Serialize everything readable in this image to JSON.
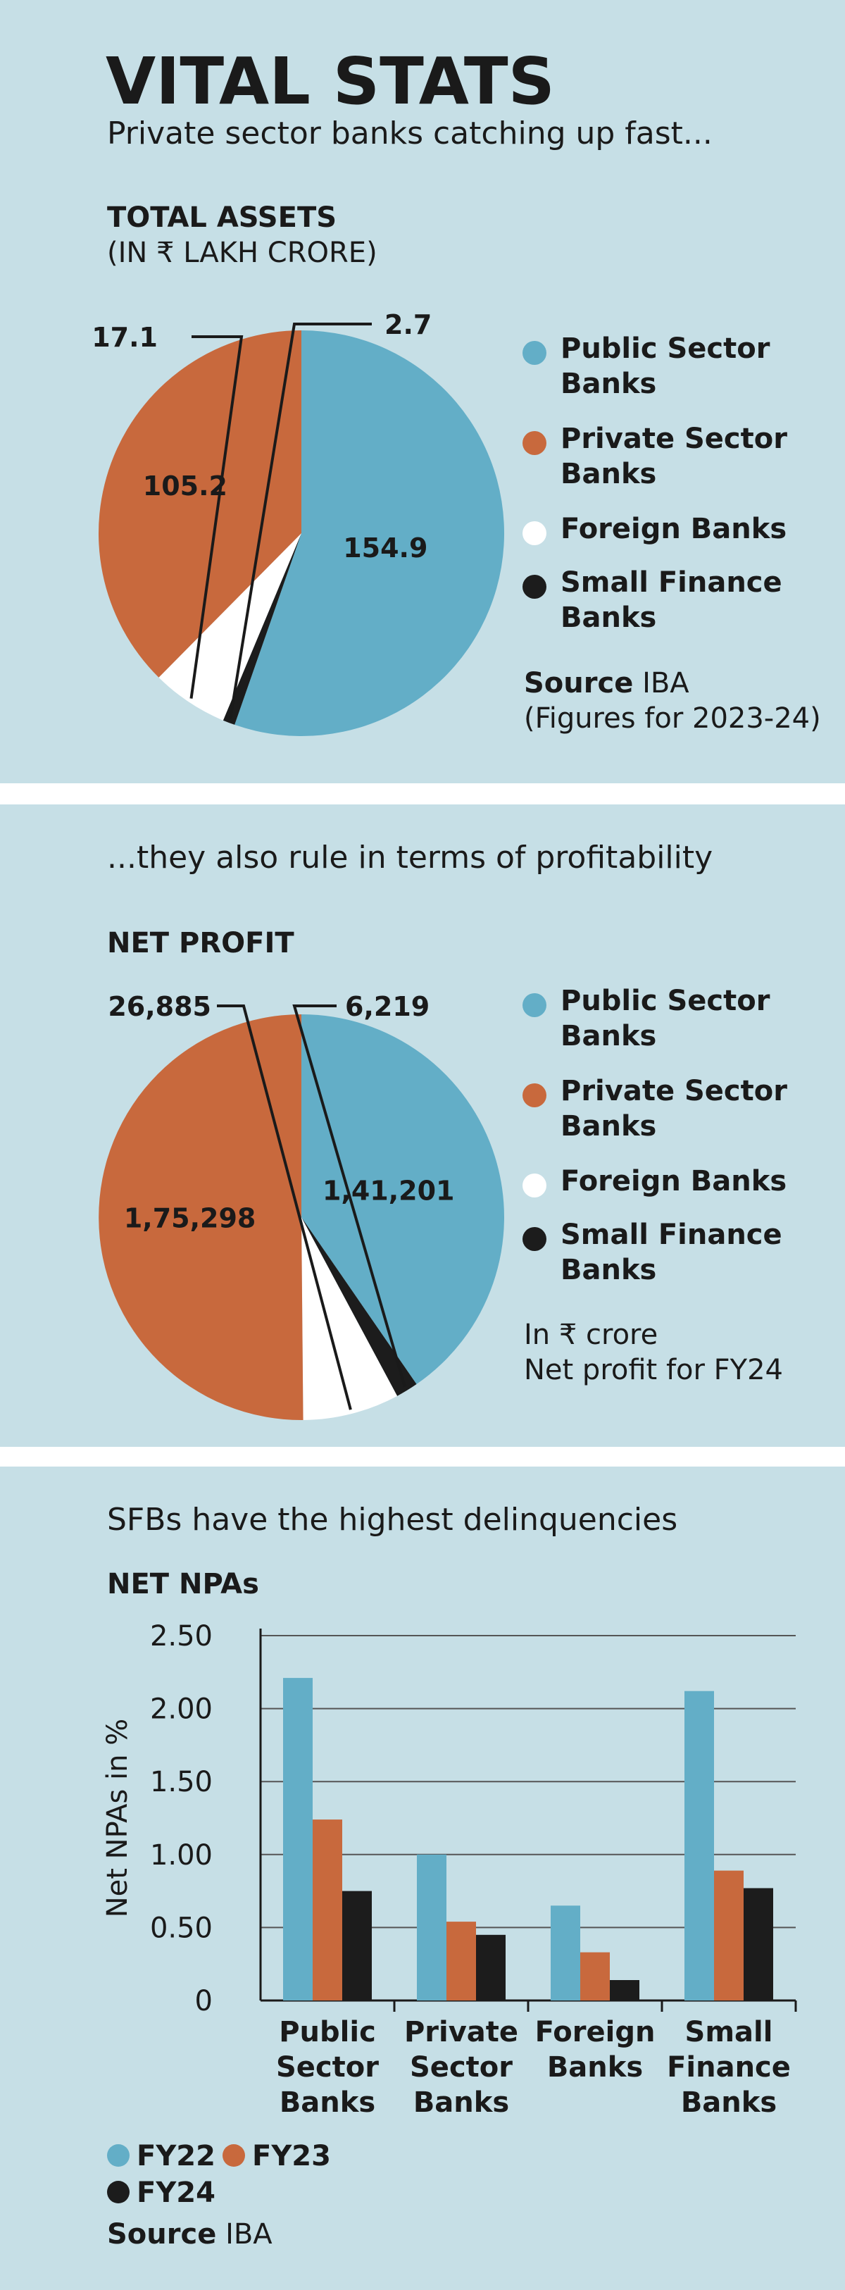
{
  "header": {
    "title": "VITAL STATS",
    "subtitle": "Private sector banks catching up fast..."
  },
  "legend_labels": [
    "Public Sector Banks",
    "Private Sector Banks",
    "Foreign Banks",
    "Small Finance Banks"
  ],
  "colors": {
    "public": "#63aec7",
    "private": "#c8693d",
    "foreign": "#ffffff",
    "sfb": "#1c1c1c",
    "background": "#c6dfe6"
  },
  "section1": {
    "label": "TOTAL ASSETS",
    "unit": "(IN ₹ LAKH CRORE)",
    "source_label": "Source",
    "source_value": "IBA",
    "figures_note": "(Figures for 2023-24)"
  },
  "section2": {
    "intro": "...they also rule in terms of profitability",
    "label": "NET PROFIT",
    "note_line1": "In ₹ crore",
    "note_line2": "Net profit for FY24"
  },
  "section3": {
    "intro": "SFBs have the highest delinquencies",
    "label": "NET NPAs",
    "source_label": "Source",
    "source_value": "IBA"
  },
  "chart_data": [
    {
      "type": "pie",
      "title": "TOTAL ASSETS",
      "subtitle": "(IN ₹ LAKH CRORE)",
      "categories": [
        "Public Sector Banks",
        "Private Sector Banks",
        "Foreign Banks",
        "Small Finance Banks"
      ],
      "values": [
        154.9,
        105.2,
        17.1,
        2.7
      ],
      "labels": [
        "154.9",
        "105.2",
        "17.1",
        "2.7"
      ]
    },
    {
      "type": "pie",
      "title": "NET PROFIT",
      "categories": [
        "Public Sector Banks",
        "Private Sector Banks",
        "Foreign Banks",
        "Small Finance Banks"
      ],
      "values": [
        141201,
        175298,
        26885,
        6219
      ],
      "labels": [
        "1,41,201",
        "1,75,298",
        "26,885",
        "6,219"
      ]
    },
    {
      "type": "bar",
      "title": "NET NPAs",
      "categories": [
        "Public Sector Banks",
        "Private Sector Banks",
        "Foreign Banks",
        "Small Finance Banks"
      ],
      "category_lines": [
        [
          "Public",
          "Sector",
          "Banks"
        ],
        [
          "Private",
          "Sector",
          "Banks"
        ],
        [
          "Foreign",
          "Banks"
        ],
        [
          "Small",
          "Finance",
          "Banks"
        ]
      ],
      "series": [
        {
          "name": "FY22",
          "values": [
            2.21,
            1.0,
            0.65,
            2.12
          ]
        },
        {
          "name": "FY23",
          "values": [
            1.24,
            0.54,
            0.33,
            0.89
          ]
        },
        {
          "name": "FY24",
          "values": [
            0.75,
            0.45,
            0.14,
            0.77
          ]
        }
      ],
      "ylabel": "Net NPAs in %",
      "ylim": [
        0,
        2.5
      ],
      "yticks": [
        0,
        0.5,
        1.0,
        1.5,
        2.0,
        2.5
      ],
      "ytick_labels": [
        "0",
        "0.50",
        "1.00",
        "1.50",
        "2.00",
        "2.50"
      ],
      "grid": true,
      "legend": "bottom-left"
    }
  ]
}
